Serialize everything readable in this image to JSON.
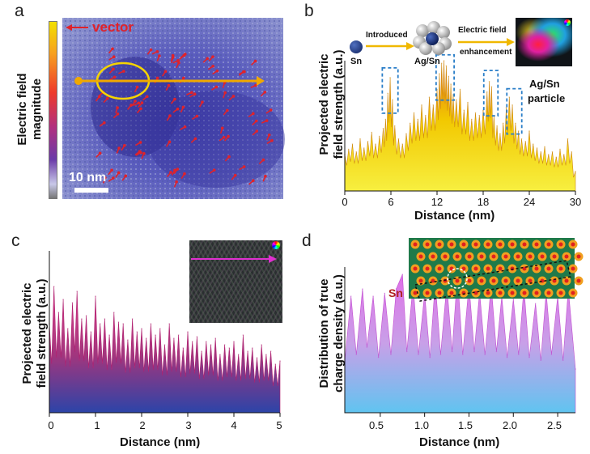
{
  "panels": {
    "a": {
      "letter": "a",
      "colorbar_label_line1": "Electric field",
      "colorbar_label_line2": "magnitude",
      "legend_text": "vector",
      "scalebar_text": "10 nm"
    },
    "b": {
      "letter": "b",
      "ylabel_line1": "Projected electric",
      "ylabel_line2": "field strength (a.u.)",
      "xlabel": "Distance (nm)",
      "xticks": [
        "0",
        "6",
        "12",
        "18",
        "24",
        "30"
      ],
      "inset": {
        "sn_label": "Sn",
        "introduced": "Introduced",
        "agsn_label": "Ag/Sn",
        "ef_line1": "Electric field",
        "ef_line2": "enhancement",
        "particle_line1": "Ag/Sn",
        "particle_line2": "particle"
      }
    },
    "c": {
      "letter": "c",
      "ylabel_line1": "Projected electric",
      "ylabel_line2": "field strength (a.u.)",
      "xlabel": "Distance (nm)",
      "xticks": [
        "0",
        "1",
        "2",
        "3",
        "4",
        "5"
      ]
    },
    "d": {
      "letter": "d",
      "ylabel_line1": "Distribution of true",
      "ylabel_line2": "charge density (a.u.)",
      "xlabel": "Distance (nm)",
      "xticks": [
        "0.5",
        "1.0",
        "1.5",
        "2.0",
        "2.5"
      ],
      "sn_label": "Sn"
    }
  },
  "colors": {
    "yellow": "#f2e600",
    "orange": "#e8861a",
    "pink": "#c8357a",
    "navy": "#2b3f9e",
    "magenta_fill_top": "#d884e0",
    "cyan_fill_bottom": "#6ec6f0",
    "vector_red": "#e0222a",
    "line_yellow": "#f5b800",
    "sn_red": "#b02020"
  },
  "chart_data": [
    {
      "panel": "b",
      "type": "area",
      "title": "",
      "xlabel": "Distance (nm)",
      "ylabel": "Projected electric field strength (a.u.)",
      "xlim": [
        0,
        30
      ],
      "ylim": [
        0,
        1
      ],
      "x": [
        0,
        0.5,
        1,
        1.5,
        2,
        2.5,
        3,
        3.5,
        4,
        4.5,
        5,
        5.3,
        5.6,
        5.9,
        6.2,
        6.5,
        7,
        7.5,
        8,
        8.5,
        9,
        9.5,
        10,
        10.5,
        11,
        11.5,
        12,
        12.3,
        12.6,
        12.9,
        13.2,
        13.5,
        13.8,
        14.1,
        14.5,
        15,
        15.5,
        16,
        16.5,
        17,
        17.5,
        18,
        18.5,
        18.8,
        19.1,
        19.4,
        19.8,
        20.2,
        20.6,
        21,
        21.4,
        21.8,
        22.2,
        22.6,
        23,
        23.5,
        24,
        24.5,
        25,
        25.5,
        26,
        26.5,
        27,
        27.5,
        28,
        28.5,
        29,
        29.5,
        30
      ],
      "values": [
        0.28,
        0.32,
        0.36,
        0.3,
        0.4,
        0.33,
        0.38,
        0.45,
        0.36,
        0.42,
        0.48,
        0.55,
        0.75,
        0.87,
        0.7,
        0.5,
        0.4,
        0.36,
        0.44,
        0.52,
        0.6,
        0.55,
        0.66,
        0.58,
        0.72,
        0.66,
        0.78,
        0.9,
        0.98,
        1.0,
        0.96,
        0.88,
        0.82,
        0.74,
        0.7,
        0.78,
        0.62,
        0.68,
        0.55,
        0.6,
        0.58,
        0.62,
        0.76,
        0.84,
        0.8,
        0.58,
        0.5,
        0.44,
        0.52,
        0.64,
        0.72,
        0.66,
        0.52,
        0.46,
        0.4,
        0.38,
        0.46,
        0.36,
        0.33,
        0.3,
        0.34,
        0.28,
        0.3,
        0.26,
        0.32,
        0.28,
        0.4,
        0.3,
        0.15
      ]
    },
    {
      "panel": "c",
      "type": "area",
      "title": "",
      "xlabel": "Distance (nm)",
      "ylabel": "Projected electric field strength (a.u.)",
      "xlim": [
        0,
        5
      ],
      "ylim": [
        0,
        1
      ],
      "x": [
        0,
        0.1,
        0.2,
        0.3,
        0.4,
        0.5,
        0.6,
        0.7,
        0.8,
        0.9,
        1.0,
        1.1,
        1.2,
        1.3,
        1.4,
        1.5,
        1.6,
        1.7,
        1.8,
        1.9,
        2.0,
        2.1,
        2.2,
        2.3,
        2.4,
        2.5,
        2.6,
        2.7,
        2.8,
        2.9,
        3.0,
        3.1,
        3.2,
        3.3,
        3.4,
        3.5,
        3.6,
        3.7,
        3.8,
        3.9,
        4.0,
        4.1,
        4.2,
        4.3,
        4.4,
        4.5,
        4.6,
        4.7,
        4.8,
        4.9,
        5.0
      ],
      "values": [
        0.55,
        0.78,
        0.62,
        0.7,
        0.52,
        0.68,
        0.75,
        0.58,
        0.6,
        0.5,
        0.72,
        0.55,
        0.58,
        0.48,
        0.62,
        0.56,
        0.55,
        0.45,
        0.58,
        0.5,
        0.52,
        0.46,
        0.55,
        0.48,
        0.52,
        0.42,
        0.55,
        0.46,
        0.48,
        0.4,
        0.5,
        0.44,
        0.47,
        0.38,
        0.44,
        0.42,
        0.46,
        0.36,
        0.42,
        0.4,
        0.44,
        0.36,
        0.48,
        0.38,
        0.4,
        0.34,
        0.42,
        0.36,
        0.38,
        0.3,
        0.32
      ]
    },
    {
      "panel": "d",
      "type": "area",
      "title": "",
      "xlabel": "Distance (nm)",
      "ylabel": "Distribution of true charge density (a.u.)",
      "xlim": [
        0.1,
        2.7
      ],
      "ylim": [
        0,
        1
      ],
      "x": [
        0.1,
        0.17,
        0.23,
        0.3,
        0.35,
        0.42,
        0.48,
        0.55,
        0.62,
        0.68,
        0.75,
        0.8,
        0.87,
        0.93,
        1.0,
        1.06,
        1.12,
        1.18,
        1.25,
        1.31,
        1.37,
        1.43,
        1.5,
        1.56,
        1.62,
        1.68,
        1.75,
        1.81,
        1.87,
        1.93,
        2.0,
        2.06,
        2.12,
        2.18,
        2.25,
        2.31,
        2.37,
        2.43,
        2.5,
        2.56,
        2.62,
        2.7
      ],
      "values": [
        0.35,
        0.8,
        0.4,
        0.85,
        0.45,
        0.8,
        0.38,
        0.82,
        0.4,
        0.85,
        0.95,
        0.42,
        0.88,
        0.4,
        0.82,
        0.38,
        0.9,
        0.4,
        0.88,
        0.42,
        0.95,
        0.4,
        0.88,
        0.42,
        0.83,
        0.4,
        0.88,
        0.42,
        0.8,
        0.38,
        0.78,
        0.4,
        0.86,
        0.38,
        0.75,
        0.36,
        0.83,
        0.4,
        0.8,
        0.36,
        0.85,
        0.3
      ]
    }
  ]
}
